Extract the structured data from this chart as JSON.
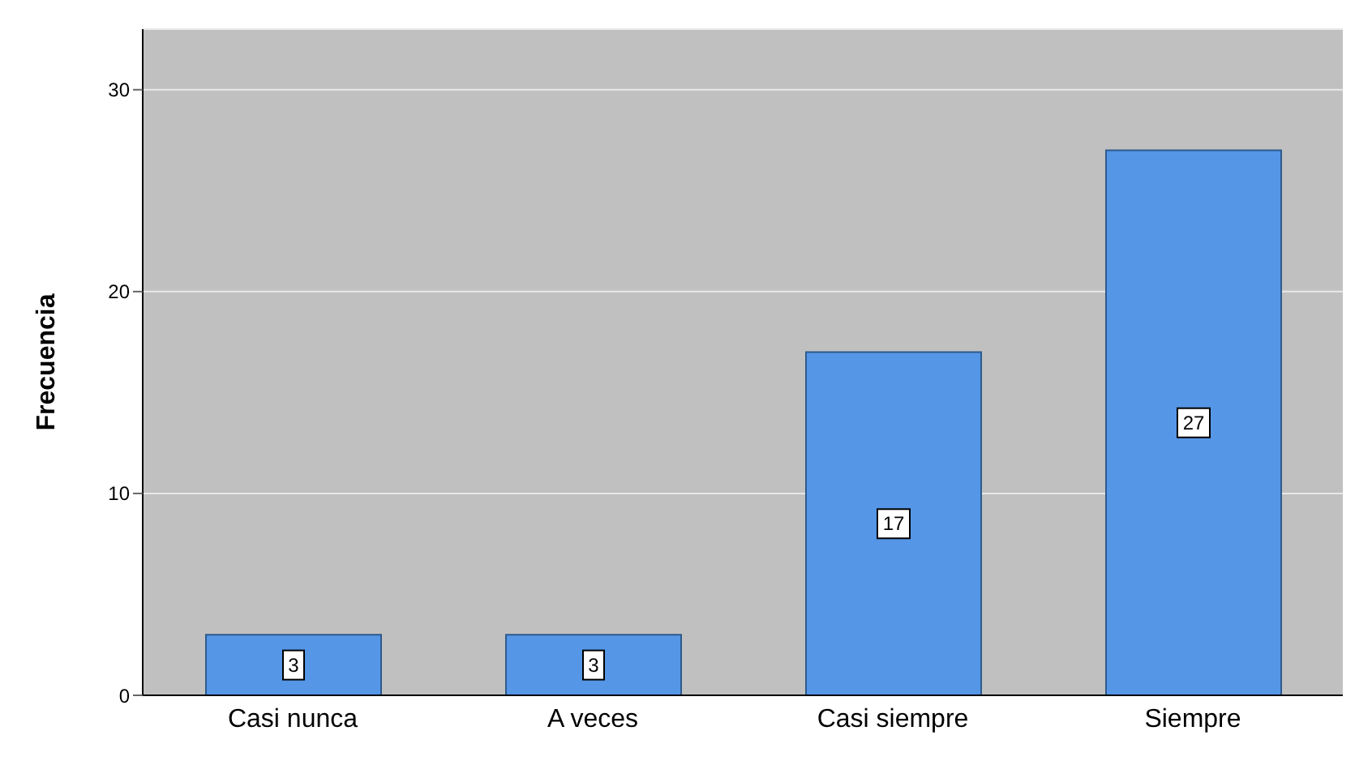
{
  "chart_data": {
    "type": "bar",
    "ylabel": "Frecuencia",
    "categories": [
      "Casi nunca",
      "A veces",
      "Casi siempre",
      "Siempre"
    ],
    "values": [
      3,
      3,
      17,
      27
    ],
    "color": "#5596e6",
    "ylim": [
      0,
      33
    ],
    "yticks": [
      0,
      10,
      20,
      30
    ],
    "grid": "y",
    "data_labels": true
  }
}
